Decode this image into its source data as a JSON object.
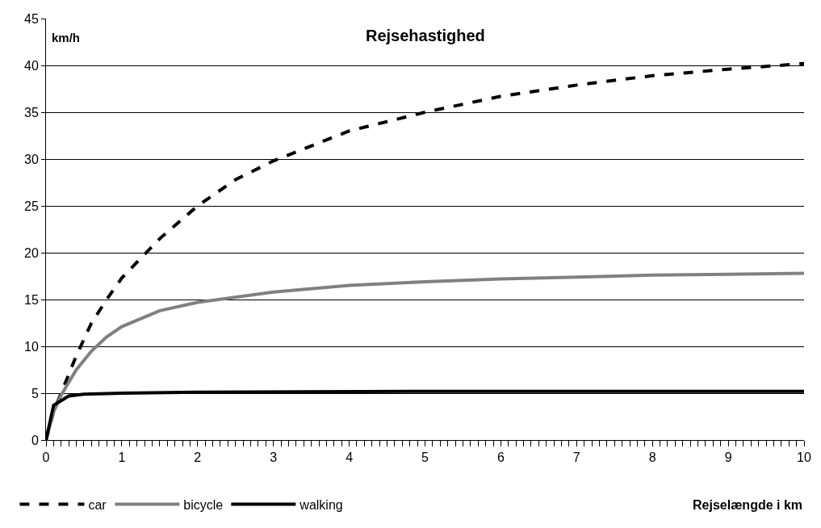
{
  "chart_data": {
    "type": "line",
    "title": "Rejsehastighed",
    "ylabel": "km/h",
    "xlabel": "Rejselængde i km",
    "xlim": [
      0,
      10
    ],
    "ylim": [
      0,
      45
    ],
    "yticks": [
      0,
      5,
      10,
      15,
      20,
      25,
      30,
      35,
      40,
      45
    ],
    "xticks": [
      0,
      {
        "value": 0.1,
        "label": null
      },
      {
        "value": 0.2,
        "label": null
      },
      {
        "value": 0.3,
        "label": null
      },
      {
        "value": 0.4,
        "label": null
      },
      {
        "value": 0.5,
        "label": null
      },
      {
        "value": 0.6,
        "label": null
      },
      {
        "value": 0.7,
        "label": null
      },
      {
        "value": 0.8,
        "label": null
      },
      {
        "value": 0.9,
        "label": null
      },
      1,
      {
        "value": 1.1,
        "label": null
      },
      {
        "value": 1.2,
        "label": null
      },
      {
        "value": 1.3,
        "label": null
      },
      {
        "value": 1.4,
        "label": null
      },
      {
        "value": 1.5,
        "label": null
      },
      {
        "value": 1.6,
        "label": null
      },
      {
        "value": 1.7,
        "label": null
      },
      {
        "value": 1.8,
        "label": null
      },
      {
        "value": 1.9,
        "label": null
      },
      2,
      {
        "value": 2.1,
        "label": null
      },
      {
        "value": 2.2,
        "label": null
      },
      {
        "value": 2.3,
        "label": null
      },
      {
        "value": 2.4,
        "label": null
      },
      {
        "value": 2.5,
        "label": null
      },
      {
        "value": 2.6,
        "label": null
      },
      {
        "value": 2.7,
        "label": null
      },
      {
        "value": 2.8,
        "label": null
      },
      {
        "value": 2.9,
        "label": null
      },
      3,
      {
        "value": 3.1,
        "label": null
      },
      {
        "value": 3.2,
        "label": null
      },
      {
        "value": 3.3,
        "label": null
      },
      {
        "value": 3.4,
        "label": null
      },
      {
        "value": 3.5,
        "label": null
      },
      {
        "value": 3.6,
        "label": null
      },
      {
        "value": 3.7,
        "label": null
      },
      {
        "value": 3.8,
        "label": null
      },
      {
        "value": 3.9,
        "label": null
      },
      4,
      {
        "value": 4.1,
        "label": null
      },
      {
        "value": 4.2,
        "label": null
      },
      {
        "value": 4.3,
        "label": null
      },
      {
        "value": 4.4,
        "label": null
      },
      {
        "value": 4.5,
        "label": null
      },
      {
        "value": 4.6,
        "label": null
      },
      {
        "value": 4.7,
        "label": null
      },
      {
        "value": 4.8,
        "label": null
      },
      {
        "value": 4.9,
        "label": null
      },
      5,
      {
        "value": 5.1,
        "label": null
      },
      {
        "value": 5.2,
        "label": null
      },
      {
        "value": 5.3,
        "label": null
      },
      {
        "value": 5.4,
        "label": null
      },
      {
        "value": 5.5,
        "label": null
      },
      {
        "value": 5.6,
        "label": null
      },
      {
        "value": 5.7,
        "label": null
      },
      {
        "value": 5.8,
        "label": null
      },
      {
        "value": 5.9,
        "label": null
      },
      6,
      {
        "value": 6.1,
        "label": null
      },
      {
        "value": 6.2,
        "label": null
      },
      {
        "value": 6.3,
        "label": null
      },
      {
        "value": 6.4,
        "label": null
      },
      {
        "value": 6.5,
        "label": null
      },
      {
        "value": 6.6,
        "label": null
      },
      {
        "value": 6.7,
        "label": null
      },
      {
        "value": 6.8,
        "label": null
      },
      {
        "value": 6.9,
        "label": null
      },
      7,
      {
        "value": 7.1,
        "label": null
      },
      {
        "value": 7.2,
        "label": null
      },
      {
        "value": 7.3,
        "label": null
      },
      {
        "value": 7.4,
        "label": null
      },
      {
        "value": 7.5,
        "label": null
      },
      {
        "value": 7.6,
        "label": null
      },
      {
        "value": 7.7,
        "label": null
      },
      {
        "value": 7.8,
        "label": null
      },
      {
        "value": 7.9,
        "label": null
      },
      8,
      {
        "value": 8.1,
        "label": null
      },
      {
        "value": 8.2,
        "label": null
      },
      {
        "value": 8.3,
        "label": null
      },
      {
        "value": 8.4,
        "label": null
      },
      {
        "value": 8.5,
        "label": null
      },
      {
        "value": 8.6,
        "label": null
      },
      {
        "value": 8.7,
        "label": null
      },
      {
        "value": 8.8,
        "label": null
      },
      {
        "value": 8.9,
        "label": null
      },
      9,
      {
        "value": 9.1,
        "label": null
      },
      {
        "value": 9.2,
        "label": null
      },
      {
        "value": 9.3,
        "label": null
      },
      {
        "value": 9.4,
        "label": null
      },
      {
        "value": 9.5,
        "label": null
      },
      {
        "value": 9.6,
        "label": null
      },
      {
        "value": 9.7,
        "label": null
      },
      {
        "value": 9.8,
        "label": null
      },
      {
        "value": 9.9,
        "label": null
      },
      10
    ],
    "grid": "y",
    "legend": "bottom left",
    "marker": "none",
    "series": [
      {
        "name": "car",
        "color": "#000000",
        "line_style": "dashed",
        "x": [
          0,
          0.1,
          0.2,
          0.4,
          0.6,
          0.8,
          1,
          1.5,
          2,
          2.5,
          3,
          4,
          5,
          6,
          7,
          8,
          9,
          10
        ],
        "values": [
          0,
          3,
          5,
          9,
          12.5,
          15,
          17.3,
          21.5,
          25,
          27.8,
          29.8,
          33,
          35,
          36.7,
          37.9,
          38.9,
          39.6,
          40.2
        ]
      },
      {
        "name": "bicycle",
        "color": "#808080",
        "line_style": "solid",
        "x": [
          0,
          0.1,
          0.2,
          0.4,
          0.6,
          0.8,
          1,
          1.5,
          2,
          3,
          4,
          5,
          6,
          7,
          8,
          9,
          10
        ],
        "values": [
          0,
          3,
          4.8,
          7.5,
          9.5,
          11,
          12.1,
          13.8,
          14.7,
          15.8,
          16.5,
          16.9,
          17.2,
          17.4,
          17.6,
          17.7,
          17.8
        ]
      },
      {
        "name": "walking",
        "color": "#000000",
        "line_style": "solid",
        "x": [
          0,
          0.1,
          0.3,
          0.5,
          1,
          2,
          5,
          10
        ],
        "values": [
          0,
          3.7,
          4.7,
          4.9,
          5.0,
          5.1,
          5.2,
          5.2
        ]
      }
    ]
  }
}
